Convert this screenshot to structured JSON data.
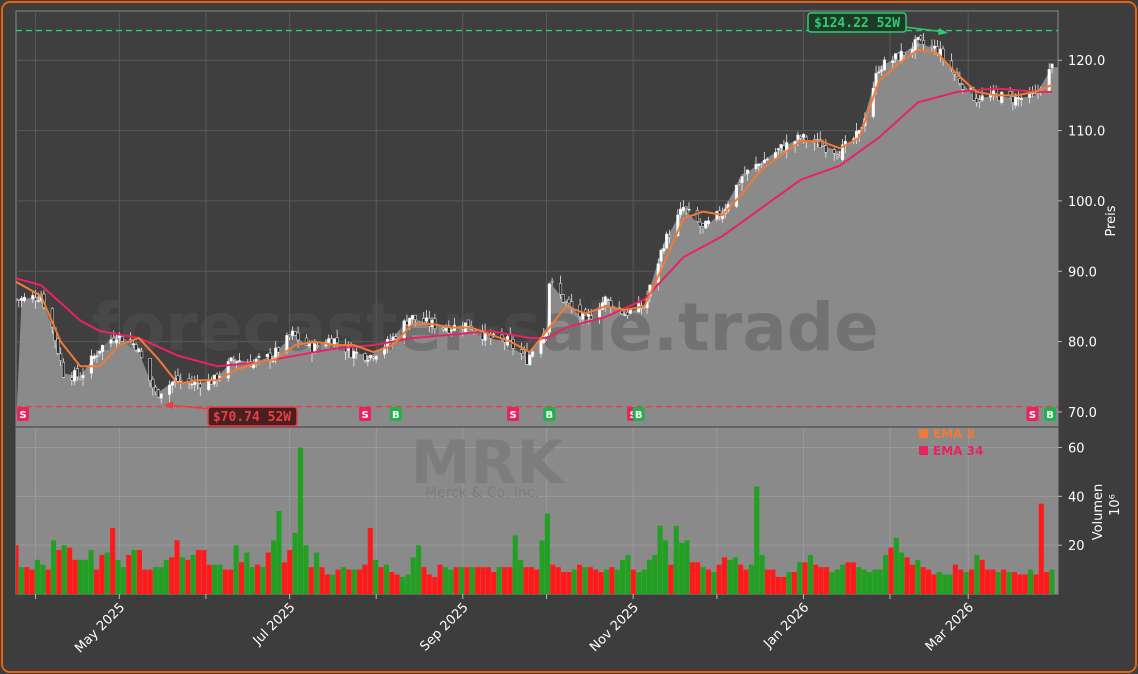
{
  "chart_data": {
    "type": "candlestick",
    "watermark": "forecaster-sale.trade",
    "ticker_watermark": "MRK",
    "company_watermark": "Merck & Co. Inc.",
    "price_axis": {
      "label": "Preis",
      "ylim": [
        68,
        127
      ],
      "ticks": [
        "70.0",
        "80.0",
        "90.0",
        "100.0",
        "110.0",
        "120.0"
      ]
    },
    "volume_axis": {
      "label": "Volumen",
      "multiplier": "10⁶",
      "ylim": [
        0,
        68
      ],
      "ticks": [
        "20",
        "40",
        "60"
      ]
    },
    "x_axis": {
      "ticks": [
        "May 2025",
        "Jul 2025",
        "Sep 2025",
        "Nov 2025",
        "Jan 2026",
        "Mar 2026"
      ],
      "range": [
        "2025-03-25",
        "2026-03-31"
      ]
    },
    "high_52w": {
      "value": 124.22,
      "label": "$124.22 52W",
      "color": "#2ecc71"
    },
    "low_52w": {
      "value": 70.74,
      "label": "$70.74 52W",
      "color": "#e84040"
    },
    "legend": [
      {
        "name": "EMA 8",
        "color": "#f07a36"
      },
      {
        "name": "EMA 34",
        "color": "#e8245f"
      }
    ],
    "close_series": {
      "dates": [
        "2025-03-27",
        "2025-04-03",
        "2025-04-07",
        "2025-04-11",
        "2025-04-17",
        "2025-04-24",
        "2025-04-30",
        "2025-05-07",
        "2025-05-14",
        "2025-05-21",
        "2025-05-28",
        "2025-06-04",
        "2025-06-11",
        "2025-06-18",
        "2025-06-25",
        "2025-07-02",
        "2025-07-09",
        "2025-07-16",
        "2025-07-23",
        "2025-07-30",
        "2025-08-06",
        "2025-08-13",
        "2025-08-20",
        "2025-08-27",
        "2025-09-03",
        "2025-09-10",
        "2025-09-17",
        "2025-09-24",
        "2025-10-01",
        "2025-10-02",
        "2025-10-08",
        "2025-10-15",
        "2025-10-22",
        "2025-10-29",
        "2025-11-05",
        "2025-11-12",
        "2025-11-19",
        "2025-11-26",
        "2025-12-03",
        "2025-12-10",
        "2025-12-17",
        "2025-12-24",
        "2025-12-31",
        "2026-01-07",
        "2026-01-14",
        "2026-01-21",
        "2026-01-28",
        "2026-02-04",
        "2026-02-11",
        "2026-02-18",
        "2026-02-25",
        "2026-03-04",
        "2026-03-11",
        "2026-03-18",
        "2026-03-25",
        "2026-03-31"
      ],
      "values": [
        86.0,
        86.5,
        82.0,
        75.5,
        75.0,
        79.0,
        81.0,
        79.5,
        72.5,
        74.5,
        74.0,
        74.5,
        77.5,
        77.0,
        78.0,
        81.0,
        79.0,
        80.5,
        78.5,
        78.0,
        80.0,
        83.5,
        82.5,
        82.0,
        82.5,
        80.5,
        80.0,
        77.5,
        82.0,
        88.5,
        85.5,
        83.0,
        86.0,
        84.0,
        85.0,
        94.0,
        99.0,
        96.0,
        98.5,
        103.5,
        105.5,
        107.5,
        109.0,
        108.0,
        107.0,
        109.5,
        119.0,
        120.5,
        122.5,
        121.5,
        117.5,
        114.5,
        115.0,
        114.5,
        115.0,
        119.0
      ]
    },
    "ema8": {
      "dates": [
        "2025-03-25",
        "2025-04-03",
        "2025-04-10",
        "2025-04-17",
        "2025-04-24",
        "2025-05-01",
        "2025-05-08",
        "2025-05-15",
        "2025-05-22",
        "2025-05-29",
        "2025-06-05",
        "2025-06-12",
        "2025-06-19",
        "2025-06-26",
        "2025-07-03",
        "2025-07-10",
        "2025-07-17",
        "2025-07-24",
        "2025-07-31",
        "2025-08-07",
        "2025-08-14",
        "2025-08-21",
        "2025-08-28",
        "2025-09-04",
        "2025-09-11",
        "2025-09-18",
        "2025-09-25",
        "2025-10-01",
        "2025-10-08",
        "2025-10-15",
        "2025-10-22",
        "2025-10-29",
        "2025-11-05",
        "2025-11-12",
        "2025-11-19",
        "2025-11-26",
        "2025-12-03",
        "2025-12-10",
        "2025-12-17",
        "2025-12-24",
        "2025-12-31",
        "2026-01-07",
        "2026-01-14",
        "2026-01-21",
        "2026-01-28",
        "2026-02-04",
        "2026-02-11",
        "2026-02-18",
        "2026-02-25",
        "2026-03-04",
        "2026-03-11",
        "2026-03-18",
        "2026-03-25",
        "2026-03-31"
      ],
      "values": [
        88.5,
        86.5,
        80.0,
        76.5,
        76.5,
        79.5,
        80.5,
        77.5,
        74.0,
        74.5,
        74.5,
        76.0,
        77.0,
        77.5,
        79.5,
        80.0,
        79.5,
        79.5,
        78.5,
        79.5,
        82.5,
        82.5,
        82.0,
        82.0,
        81.0,
        80.0,
        78.5,
        81.5,
        85.0,
        84.0,
        85.0,
        84.5,
        85.0,
        91.0,
        97.5,
        98.5,
        98.0,
        101.0,
        104.5,
        106.5,
        108.5,
        108.5,
        107.5,
        109.0,
        117.0,
        119.5,
        121.5,
        121.0,
        118.0,
        115.5,
        115.0,
        115.0,
        115.5,
        116.5
      ]
    },
    "ema34": {
      "dates": [
        "2025-03-25",
        "2025-04-03",
        "2025-04-10",
        "2025-04-17",
        "2025-04-24",
        "2025-05-08",
        "2025-05-22",
        "2025-06-05",
        "2025-06-19",
        "2025-07-03",
        "2025-07-17",
        "2025-07-31",
        "2025-08-14",
        "2025-08-28",
        "2025-09-11",
        "2025-09-25",
        "2025-10-01",
        "2025-10-08",
        "2025-10-22",
        "2025-11-05",
        "2025-11-19",
        "2025-12-03",
        "2025-12-17",
        "2025-12-31",
        "2026-01-14",
        "2026-01-28",
        "2026-02-11",
        "2026-02-25",
        "2026-03-11",
        "2026-03-25",
        "2026-03-31"
      ],
      "values": [
        89.0,
        88.0,
        85.5,
        83.0,
        81.5,
        80.5,
        78.0,
        76.5,
        77.0,
        78.0,
        79.0,
        79.5,
        80.5,
        81.0,
        81.5,
        80.5,
        80.5,
        82.0,
        83.5,
        86.0,
        92.0,
        95.0,
        99.0,
        103.0,
        105.0,
        109.0,
        114.0,
        115.5,
        116.0,
        115.5,
        115.5
      ]
    },
    "signals": [
      {
        "type": "S",
        "date": "2025-03-25"
      },
      {
        "type": "B",
        "date": "2025-06-06"
      },
      {
        "type": "S",
        "date": "2025-07-28"
      },
      {
        "type": "B",
        "date": "2025-08-08"
      },
      {
        "type": "S",
        "date": "2025-09-19"
      },
      {
        "type": "B",
        "date": "2025-10-02"
      },
      {
        "type": "S",
        "date": "2025-11-01"
      },
      {
        "type": "B",
        "date": "2025-11-03"
      },
      {
        "type": "S",
        "date": "2026-03-24"
      },
      {
        "type": "B",
        "date": "2026-03-31"
      }
    ],
    "volume": {
      "start_date": "2025-03-25",
      "end_date": "2026-03-31",
      "values": [
        20,
        11,
        11,
        10,
        14,
        12,
        10,
        22,
        18,
        20,
        19,
        14,
        14,
        14,
        18,
        10,
        16,
        17,
        27,
        14,
        11,
        16,
        18,
        18,
        10,
        10,
        11,
        11,
        14,
        15,
        22,
        15,
        14,
        16,
        18,
        18,
        12,
        12,
        12,
        10,
        10,
        20,
        13,
        17,
        11,
        12,
        11,
        17,
        22,
        34,
        13,
        18,
        25,
        60,
        20,
        11,
        17,
        11,
        8,
        8,
        10,
        11,
        10,
        10,
        10,
        12,
        27,
        14,
        11,
        12,
        9,
        8,
        7,
        8,
        15,
        20,
        11,
        8,
        7,
        12,
        11,
        10,
        11,
        11,
        11,
        11,
        11,
        11,
        11,
        9,
        11,
        11,
        11,
        24,
        14,
        11,
        11,
        10,
        22,
        33,
        12,
        11,
        9,
        9,
        10,
        12,
        11,
        11,
        10,
        9,
        10,
        11,
        10,
        14,
        16,
        10,
        9,
        10,
        14,
        16,
        28,
        22,
        12,
        28,
        21,
        22,
        13,
        13,
        11,
        10,
        9,
        12,
        15,
        14,
        15,
        12,
        10,
        12,
        44,
        16,
        10,
        10,
        7,
        7,
        9,
        9,
        13,
        13,
        16,
        12,
        11,
        11,
        9,
        10,
        12,
        13,
        13,
        11,
        10,
        9,
        10,
        10,
        16,
        19,
        23,
        17,
        15,
        12,
        14,
        11,
        10,
        8,
        9,
        8,
        8,
        12,
        10,
        9,
        10,
        16,
        14,
        10,
        10,
        9,
        10,
        9,
        9,
        8,
        8,
        10,
        8,
        37,
        9,
        10
      ],
      "dirs": [
        0,
        1,
        0,
        0,
        1,
        1,
        0,
        1,
        0,
        1,
        0,
        0,
        1,
        1,
        1,
        0,
        0,
        1,
        0,
        1,
        1,
        0,
        1,
        0,
        0,
        0,
        1,
        1,
        1,
        0,
        0,
        1,
        0,
        1,
        0,
        0,
        0,
        1,
        1,
        0,
        0,
        1,
        0,
        1,
        1,
        0,
        1,
        0,
        1,
        1,
        0,
        0,
        1,
        1,
        1,
        0,
        1,
        0,
        0,
        1,
        0,
        1,
        0,
        1,
        0,
        0,
        0,
        1,
        0,
        1,
        0,
        0,
        1,
        1,
        1,
        1,
        0,
        0,
        0,
        0,
        1,
        1,
        0,
        1,
        0,
        1,
        0,
        0,
        0,
        0,
        1,
        0,
        0,
        1,
        1,
        0,
        0,
        0,
        1,
        1,
        0,
        0,
        0,
        0,
        1,
        0,
        1,
        0,
        0,
        0,
        1,
        0,
        1,
        1,
        1,
        0,
        1,
        1,
        1,
        1,
        1,
        1,
        0,
        1,
        1,
        1,
        0,
        0,
        1,
        0,
        1,
        0,
        0,
        1,
        1,
        0,
        0,
        1,
        1,
        1,
        0,
        0,
        0,
        0,
        1,
        0,
        1,
        0,
        1,
        0,
        0,
        0,
        1,
        1,
        1,
        0,
        0,
        1,
        1,
        1,
        1,
        1,
        1,
        0,
        1,
        1,
        0,
        0,
        1,
        0,
        0,
        0,
        1,
        1,
        1,
        0,
        0,
        1,
        0,
        1,
        0,
        0,
        0,
        1,
        0,
        1,
        0,
        0,
        0,
        1,
        0,
        0,
        0,
        1
      ]
    }
  }
}
